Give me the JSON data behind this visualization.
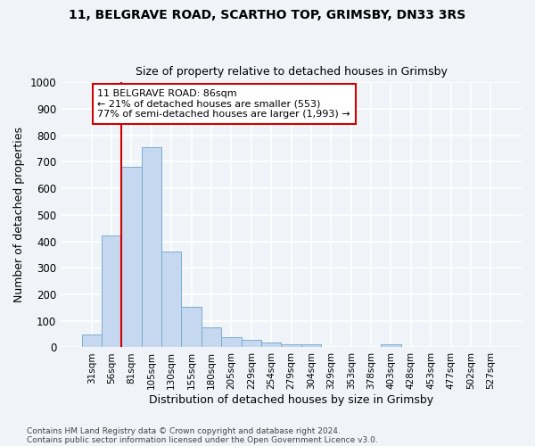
{
  "title_line1": "11, BELGRAVE ROAD, SCARTHO TOP, GRIMSBY, DN33 3RS",
  "title_line2": "Size of property relative to detached houses in Grimsby",
  "xlabel": "Distribution of detached houses by size in Grimsby",
  "ylabel": "Number of detached properties",
  "categories": [
    "31sqm",
    "56sqm",
    "81sqm",
    "105sqm",
    "130sqm",
    "155sqm",
    "180sqm",
    "205sqm",
    "229sqm",
    "254sqm",
    "279sqm",
    "304sqm",
    "329sqm",
    "353sqm",
    "378sqm",
    "403sqm",
    "428sqm",
    "453sqm",
    "477sqm",
    "502sqm",
    "527sqm"
  ],
  "values": [
    50,
    422,
    683,
    754,
    362,
    154,
    75,
    38,
    30,
    18,
    12,
    10,
    0,
    0,
    0,
    10,
    0,
    0,
    0,
    0,
    0
  ],
  "bar_color": "#c5d8ef",
  "bar_edge_color": "#7aadce",
  "red_line_index": 2,
  "annotation_text_line1": "11 BELGRAVE ROAD: 86sqm",
  "annotation_text_line2": "← 21% of detached houses are smaller (553)",
  "annotation_text_line3": "77% of semi-detached houses are larger (1,993) →",
  "annotation_box_facecolor": "#ffffff",
  "annotation_box_edgecolor": "#cc0000",
  "red_line_color": "#cc0000",
  "ylim": [
    0,
    1000
  ],
  "yticks": [
    0,
    100,
    200,
    300,
    400,
    500,
    600,
    700,
    800,
    900,
    1000
  ],
  "bg_color": "#f0f4f8",
  "grid_color": "#ffffff",
  "footer_line1": "Contains HM Land Registry data © Crown copyright and database right 2024.",
  "footer_line2": "Contains public sector information licensed under the Open Government Licence v3.0."
}
